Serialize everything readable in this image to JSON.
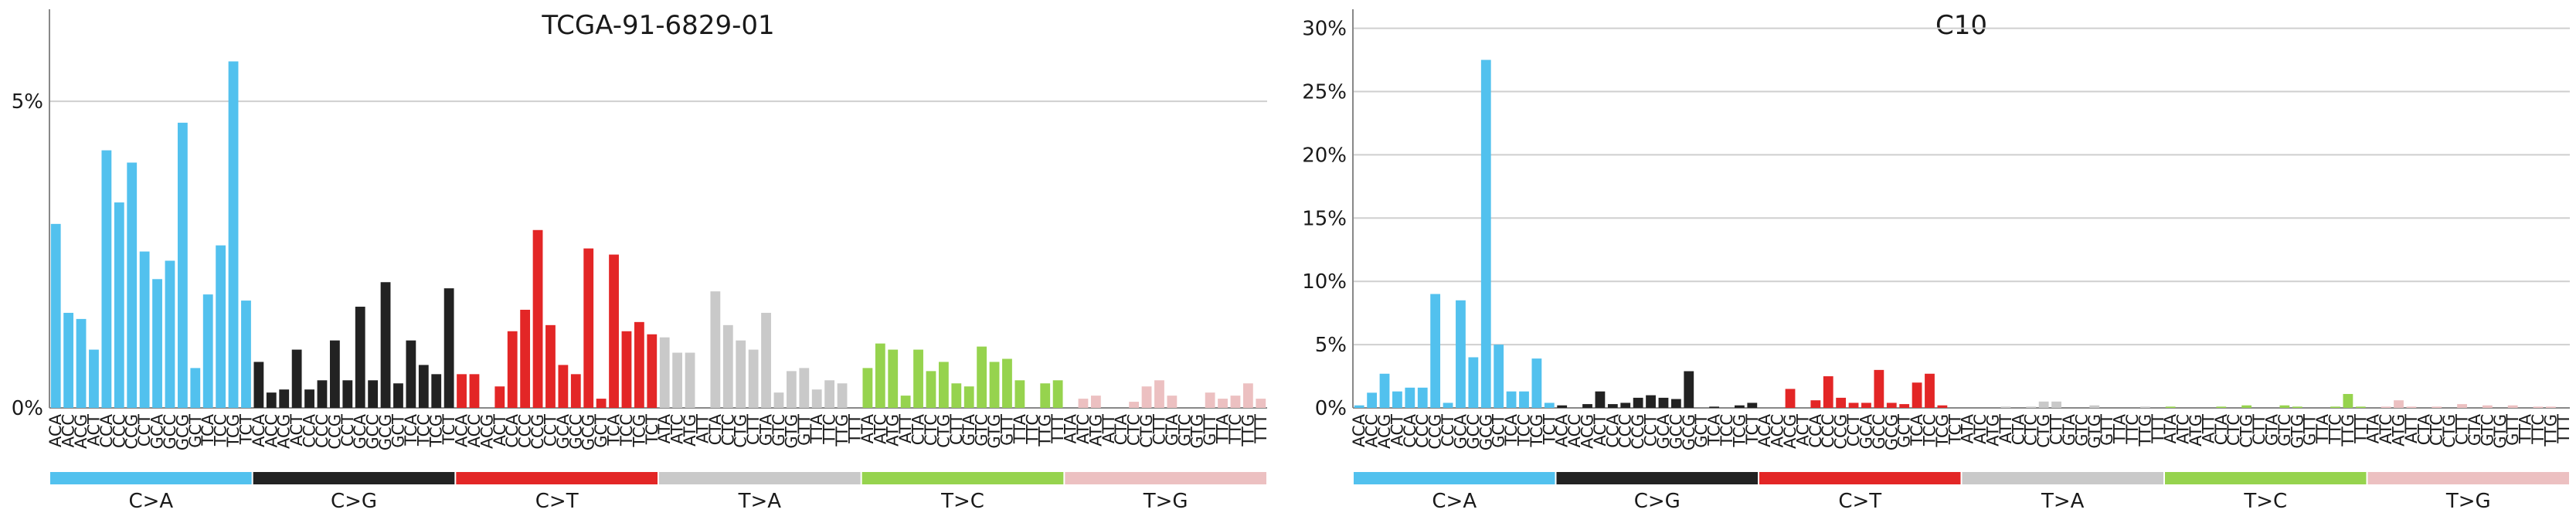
{
  "colors": {
    "C>A": "#52c1ee",
    "C>G": "#222222",
    "C>T": "#e32626",
    "T>A": "#c9c9c9",
    "T>C": "#96d34e",
    "T>G": "#ecc0c1",
    "grid": "#cfcfcf",
    "axis": "#888888",
    "text": "#1a1a1a"
  },
  "chart_data": [
    {
      "type": "bar",
      "title": "TCGA-91-6829-01",
      "ylim": [
        0,
        6.5
      ],
      "yticks": [
        0,
        5
      ],
      "ytick_labels": [
        "0%",
        "5%"
      ],
      "grid": true,
      "groups": [
        "C>A",
        "C>G",
        "C>T",
        "T>A",
        "T>C",
        "T>G"
      ],
      "categories": [
        "ACA",
        "ACC",
        "ACG",
        "ACT",
        "CCA",
        "CCC",
        "CCG",
        "CCT",
        "GCA",
        "GCC",
        "GCG",
        "GCT",
        "TCA",
        "TCC",
        "TCG",
        "TCT",
        "ACA",
        "ACC",
        "ACG",
        "ACT",
        "CCA",
        "CCC",
        "CCG",
        "CCT",
        "GCA",
        "GCC",
        "GCG",
        "GCT",
        "TCA",
        "TCC",
        "TCG",
        "TCT",
        "ACA",
        "ACC",
        "ACG",
        "ACT",
        "CCA",
        "CCC",
        "CCG",
        "CCT",
        "GCA",
        "GCC",
        "GCG",
        "GCT",
        "TCA",
        "TCC",
        "TCG",
        "TCT",
        "ATA",
        "ATC",
        "ATG",
        "ATT",
        "CTA",
        "CTC",
        "CTG",
        "CTT",
        "GTA",
        "GTC",
        "GTG",
        "GTT",
        "TTA",
        "TTC",
        "TTG",
        "TTT",
        "ATA",
        "ATC",
        "ATG",
        "ATT",
        "CTA",
        "CTC",
        "CTG",
        "CTT",
        "GTA",
        "GTC",
        "GTG",
        "GTT",
        "TTA",
        "TTC",
        "TTG",
        "TTT",
        "ATA",
        "ATC",
        "ATG",
        "ATT",
        "CTA",
        "CTC",
        "CTG",
        "CTT",
        "GTA",
        "GTC",
        "GTG",
        "GTT",
        "TTA",
        "TTC",
        "TTG",
        "TTT"
      ],
      "values": [
        3.0,
        1.55,
        1.45,
        0.95,
        4.2,
        3.35,
        4.0,
        2.55,
        2.1,
        2.4,
        4.65,
        0.65,
        1.85,
        2.65,
        5.65,
        1.75,
        0.75,
        0.25,
        0.3,
        0.95,
        0.3,
        0.45,
        1.1,
        0.45,
        1.65,
        0.45,
        2.05,
        0.4,
        1.1,
        0.7,
        0.55,
        1.95,
        0.55,
        0.55,
        0.0,
        0.35,
        1.25,
        1.6,
        2.9,
        1.35,
        0.7,
        0.55,
        2.6,
        0.15,
        2.5,
        1.25,
        1.4,
        1.2,
        1.15,
        0.9,
        0.9,
        0.0,
        1.9,
        1.35,
        1.1,
        0.95,
        1.55,
        0.25,
        0.6,
        0.65,
        0.3,
        0.45,
        0.4,
        0.0,
        0.65,
        1.05,
        0.95,
        0.2,
        0.95,
        0.6,
        0.75,
        0.4,
        0.35,
        1.0,
        0.75,
        0.8,
        0.45,
        0.0,
        0.4,
        0.45,
        0.0,
        0.15,
        0.2,
        0.0,
        0.0,
        0.1,
        0.35,
        0.45,
        0.2,
        0.0,
        0.0,
        0.25,
        0.15,
        0.2,
        0.4,
        0.15
      ]
    },
    {
      "type": "bar",
      "title": "C10",
      "ylim": [
        0,
        31.5
      ],
      "yticks": [
        0,
        5,
        10,
        15,
        20,
        25,
        30
      ],
      "ytick_labels": [
        "0%",
        "5%",
        "10%",
        "15%",
        "20%",
        "25%",
        "30%"
      ],
      "grid": true,
      "groups": [
        "C>A",
        "C>G",
        "C>T",
        "T>A",
        "T>C",
        "T>G"
      ],
      "categories": [
        "ACA",
        "ACC",
        "ACG",
        "ACT",
        "CCA",
        "CCC",
        "CCG",
        "CCT",
        "GCA",
        "GCC",
        "GCG",
        "GCT",
        "TCA",
        "TCC",
        "TCG",
        "TCT",
        "ACA",
        "ACC",
        "ACG",
        "ACT",
        "CCA",
        "CCC",
        "CCG",
        "CCT",
        "GCA",
        "GCC",
        "GCG",
        "GCT",
        "TCA",
        "TCC",
        "TCG",
        "TCT",
        "ACA",
        "ACC",
        "ACG",
        "ACT",
        "CCA",
        "CCC",
        "CCG",
        "CCT",
        "GCA",
        "GCC",
        "GCG",
        "GCT",
        "TCA",
        "TCC",
        "TCG",
        "TCT",
        "ATA",
        "ATC",
        "ATG",
        "ATT",
        "CTA",
        "CTC",
        "CTG",
        "CTT",
        "GTA",
        "GTC",
        "GTG",
        "GTT",
        "TTA",
        "TTC",
        "TTG",
        "TTT",
        "ATA",
        "ATC",
        "ATG",
        "ATT",
        "CTA",
        "CTC",
        "CTG",
        "CTT",
        "GTA",
        "GTC",
        "GTG",
        "GTT",
        "TTA",
        "TTC",
        "TTG",
        "TTT",
        "ATA",
        "ATC",
        "ATG",
        "ATT",
        "CTA",
        "CTC",
        "CTG",
        "CTT",
        "GTA",
        "GTC",
        "GTG",
        "GTT",
        "TTA",
        "TTC",
        "TTG",
        "TTT"
      ],
      "values": [
        0.2,
        1.2,
        2.7,
        1.3,
        1.6,
        1.6,
        9.0,
        0.4,
        8.5,
        4.0,
        27.5,
        5.0,
        1.3,
        1.3,
        3.9,
        0.4,
        0.2,
        0.0,
        0.3,
        1.3,
        0.3,
        0.4,
        0.8,
        1.0,
        0.8,
        0.7,
        2.9,
        0.0,
        0.1,
        0.0,
        0.2,
        0.4,
        0.0,
        0.0,
        1.5,
        0.0,
        0.6,
        2.5,
        0.8,
        0.4,
        0.4,
        3.0,
        0.4,
        0.3,
        2.0,
        2.7,
        0.2,
        0.0,
        0.0,
        0.0,
        0.0,
        0.1,
        0.0,
        0.1,
        0.5,
        0.5,
        0.0,
        0.0,
        0.2,
        0.0,
        0.0,
        0.0,
        0.1,
        0.0,
        0.1,
        0.0,
        0.0,
        0.0,
        0.1,
        0.0,
        0.2,
        0.0,
        0.0,
        0.2,
        0.1,
        0.0,
        0.0,
        0.1,
        1.1,
        0.1,
        0.0,
        0.1,
        0.6,
        0.1,
        0.0,
        0.1,
        0.0,
        0.3,
        0.0,
        0.2,
        0.0,
        0.2,
        0.0,
        0.1,
        0.1,
        0.0
      ]
    }
  ]
}
